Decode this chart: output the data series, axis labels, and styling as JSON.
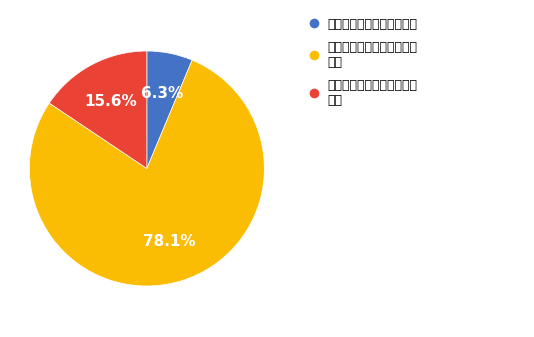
{
  "slices": [
    6.3,
    78.1,
    15.6
  ],
  "colors": [
    "#4472C4",
    "#FBBC04",
    "#EA4335"
  ],
  "labels": [
    "リモートワークを希望する",
    "一部リモートワークを希望\nする",
    "オフラインでの出社を希望\nする"
  ],
  "startangle": 90,
  "background_color": "#ffffff",
  "legend_fontsize": 9,
  "autopct_fontsize": 11
}
